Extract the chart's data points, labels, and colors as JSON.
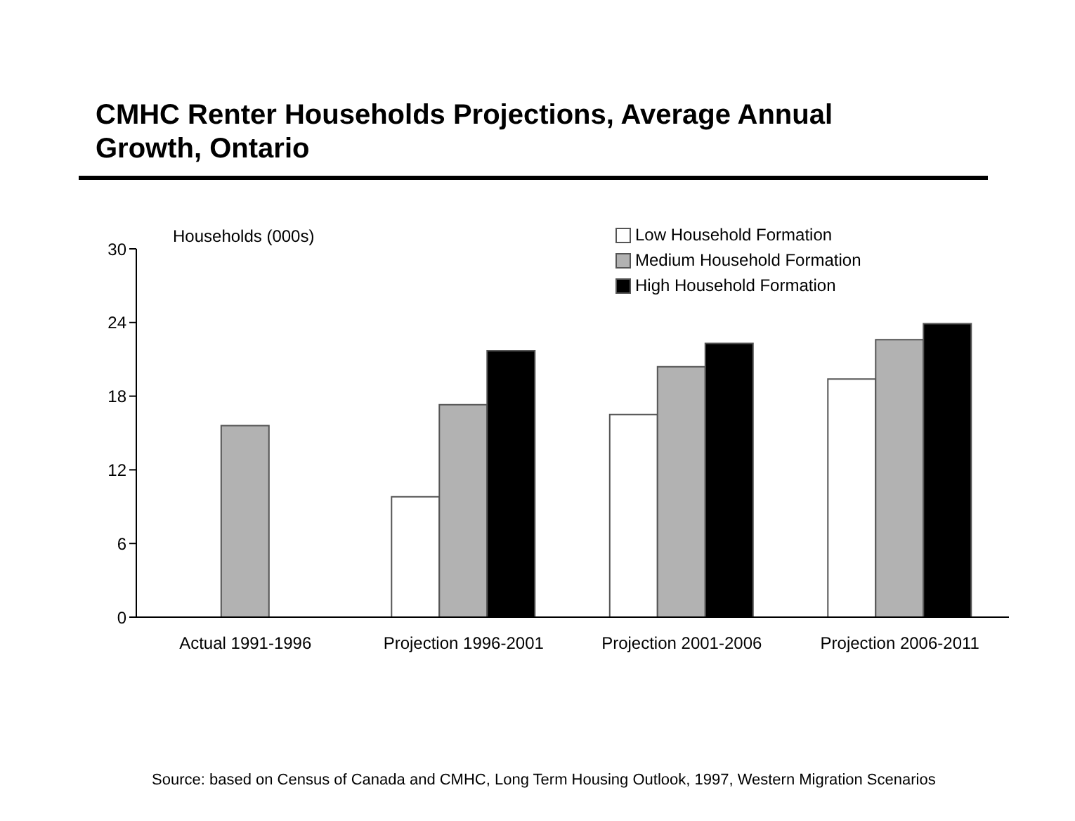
{
  "chart_data": {
    "type": "bar",
    "title": "CMHC Renter Households Projections, Average Annual Growth, Ontario",
    "ylabel": "Households  (000s)",
    "categories": [
      "Actual 1991-1996",
      "Projection 1996-2001",
      "Projection 2001-2006",
      "Projection 2006-2011"
    ],
    "series": [
      {
        "name": "Low Household Formation",
        "color": "#ffffff",
        "values": [
          null,
          9.8,
          16.5,
          19.4
        ]
      },
      {
        "name": "Medium Household Formation",
        "color": "#b2b2b2",
        "values": [
          15.6,
          17.3,
          20.4,
          22.6
        ]
      },
      {
        "name": "High Household Formation",
        "color": "#000000",
        "values": [
          null,
          21.7,
          22.3,
          23.9
        ]
      }
    ],
    "ylim": [
      0,
      30
    ],
    "yticks": [
      0,
      6,
      12,
      18,
      24,
      30
    ],
    "grid": false,
    "legend": "top right",
    "annotations": [
      "Source:  based on Census of Canada and CMHC, Long Term Housing Outlook, 1997, Western Migration Scenarios"
    ]
  }
}
